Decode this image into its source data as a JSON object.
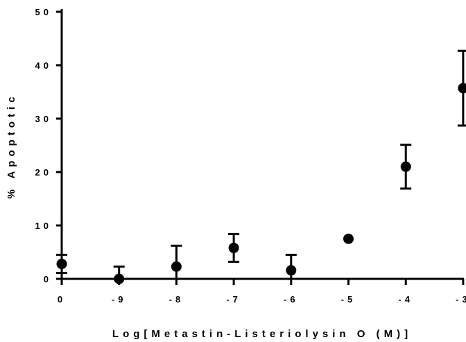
{
  "chart_data": {
    "type": "scatter",
    "title": "",
    "xlabel": "Log[Metastin-Listeriolysin O (M)]",
    "ylabel": "% Apoptotic",
    "x_tick_labels": [
      "0",
      "-9",
      "-8",
      "-7",
      "-6",
      "-5",
      "-4",
      "-3"
    ],
    "y_ticks": [
      0,
      10,
      20,
      30,
      40,
      50
    ],
    "y_tick_labels": [
      "0",
      "10",
      "20",
      "30",
      "40",
      "50"
    ],
    "ylim": [
      0,
      50
    ],
    "grid": false,
    "legend": "none",
    "series": [
      {
        "x": [
          "0",
          "-9",
          "-8",
          "-7",
          "-6",
          "-5",
          "-4",
          "-3"
        ],
        "y": [
          2.8,
          0.0,
          2.3,
          5.8,
          1.6,
          7.5,
          21.0,
          35.7
        ],
        "error": [
          1.7,
          2.3,
          3.9,
          2.6,
          2.9,
          0,
          4.1,
          7.0
        ],
        "color": "#000000"
      }
    ]
  }
}
